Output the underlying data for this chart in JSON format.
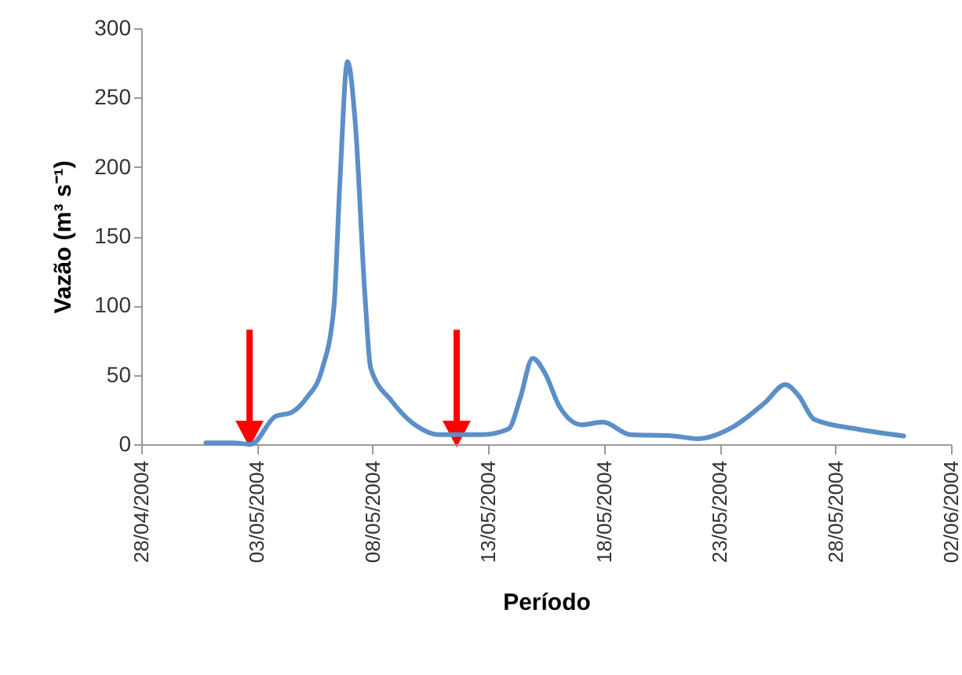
{
  "chart_data": {
    "type": "line",
    "xlabel": "Período",
    "ylabel": "Vazão (m³ s⁻¹)",
    "x": [
      "2004-04-30T19:00",
      "2004-05-01T23:00",
      "2004-05-02T18:00",
      "2004-05-03T19:00",
      "2004-05-04T12:00",
      "2004-05-05T03:00",
      "2004-05-05T20:00",
      "2004-05-06T08:00",
      "2004-05-06T14:00",
      "2004-05-06T22:00",
      "2004-05-07T06:00",
      "2004-05-07T16:00",
      "2004-05-07T22:00",
      "2004-05-08T20:00",
      "2004-05-09T22:00",
      "2004-05-10T20:00",
      "2004-05-12T19:00",
      "2004-05-13T21:00",
      "2004-05-14T09:00",
      "2004-05-14T22:00",
      "2004-05-15T11:00",
      "2004-05-16T02:00",
      "2004-05-17T01:00",
      "2004-05-17T23:00",
      "2004-05-19T03:00",
      "2004-05-21T00:00",
      "2004-05-22T01:00",
      "2004-05-23T15:00",
      "2004-05-24T23:00",
      "2004-05-25T20:00",
      "2004-05-26T10:00",
      "2004-05-27T02:00",
      "2004-05-28T22:00",
      "2004-05-30T23:00"
    ],
    "series": [
      {
        "color": "#5b8fc7",
        "values": [
          1,
          1,
          0,
          20,
          23,
          33,
          55,
          100,
          188,
          276,
          232,
          108,
          55,
          31,
          13,
          7,
          7,
          11,
          33,
          62,
          51,
          27,
          14,
          16,
          7,
          6,
          4,
          13,
          30,
          43,
          35,
          18,
          11,
          6
        ]
      }
    ],
    "xlim": [
      "2004-04-28",
      "2004-06-02"
    ],
    "xticks": [
      {
        "value": "2004-04-28",
        "label": "28/04/2004"
      },
      {
        "value": "2004-05-03",
        "label": "03/05/2004"
      },
      {
        "value": "2004-05-08",
        "label": "08/05/2004"
      },
      {
        "value": "2004-05-13",
        "label": "13/05/2004"
      },
      {
        "value": "2004-05-18",
        "label": "18/05/2004"
      },
      {
        "value": "2004-05-23",
        "label": "23/05/2004"
      },
      {
        "value": "2004-05-28",
        "label": "28/05/2004"
      },
      {
        "value": "2004-06-02",
        "label": "02/06/2004"
      }
    ],
    "ylim": [
      0,
      300
    ],
    "yticks": [
      0,
      50,
      100,
      150,
      200,
      250,
      300
    ],
    "grid": false
  }
}
